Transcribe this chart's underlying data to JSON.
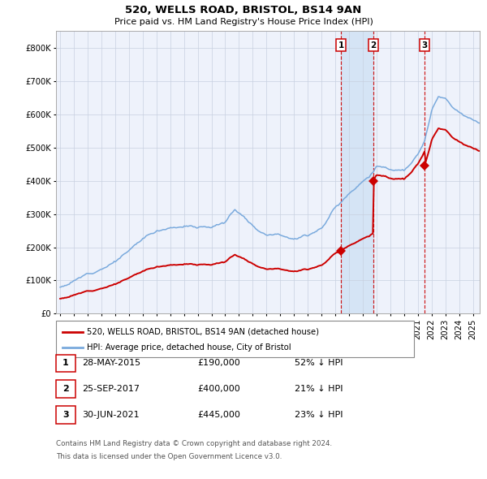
{
  "title": "520, WELLS ROAD, BRISTOL, BS14 9AN",
  "subtitle": "Price paid vs. HM Land Registry's House Price Index (HPI)",
  "footnote1": "Contains HM Land Registry data © Crown copyright and database right 2024.",
  "footnote2": "This data is licensed under the Open Government Licence v3.0.",
  "legend1": "520, WELLS ROAD, BRISTOL, BS14 9AN (detached house)",
  "legend2": "HPI: Average price, detached house, City of Bristol",
  "transactions": [
    {
      "num": 1,
      "date": "28-MAY-2015",
      "price": 190000,
      "hpi_pct": "52% ↓ HPI",
      "x_year": 2015.41
    },
    {
      "num": 2,
      "date": "25-SEP-2017",
      "price": 400000,
      "hpi_pct": "21% ↓ HPI",
      "x_year": 2017.75
    },
    {
      "num": 3,
      "date": "30-JUN-2021",
      "price": 445000,
      "hpi_pct": "23% ↓ HPI",
      "x_year": 2021.5
    }
  ],
  "hpi_color": "#7aaadd",
  "price_color": "#cc0000",
  "background_color": "#eef2fb",
  "shade_color": "#d5e4f5",
  "grid_color": "#c8d0e0",
  "ylim": [
    0,
    850000
  ],
  "xlim_start": 1994.7,
  "xlim_end": 2025.5,
  "yticks": [
    0,
    100000,
    200000,
    300000,
    400000,
    500000,
    600000,
    700000,
    800000
  ]
}
